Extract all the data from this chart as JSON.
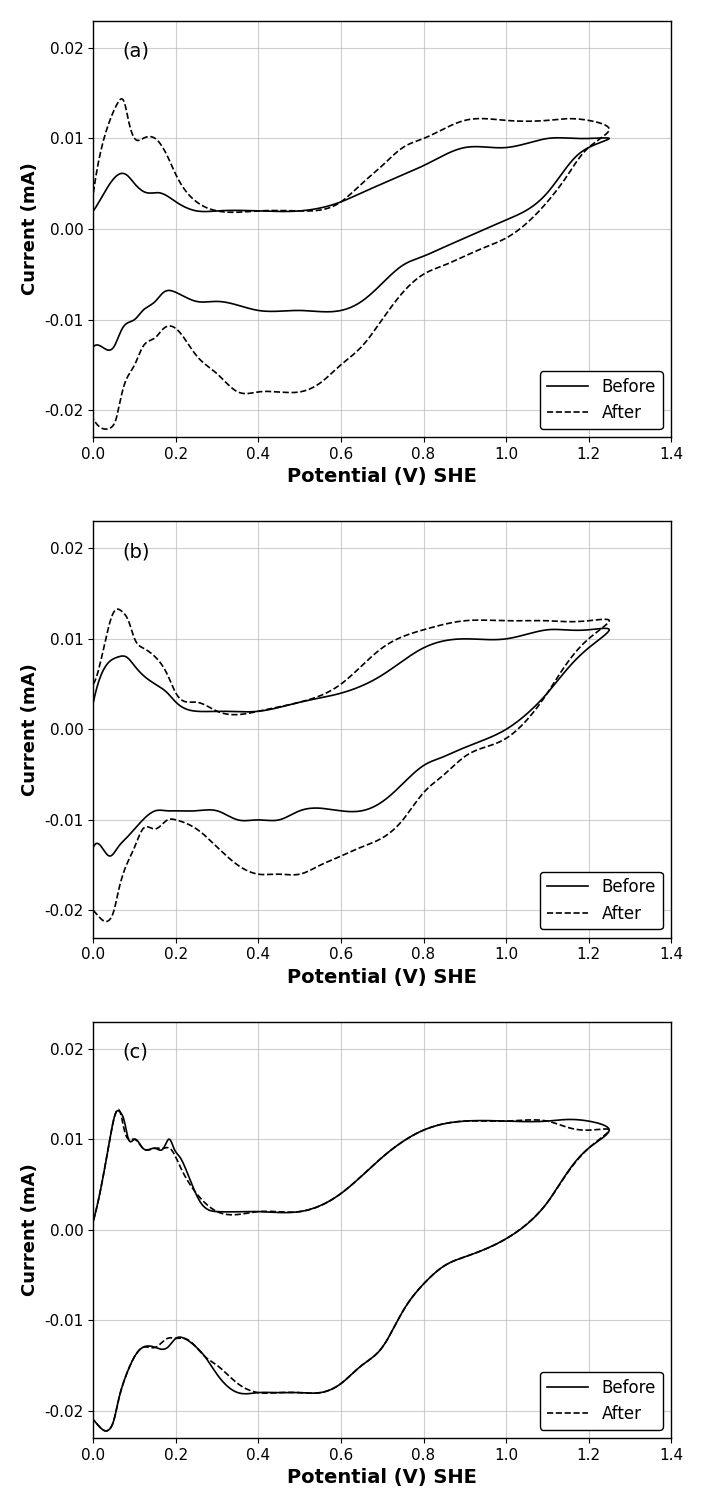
{
  "panels": [
    "(a)",
    "(b)",
    "(c)"
  ],
  "xlabel": "Potential (V) SHE",
  "ylabel": "Current (mA)",
  "xlim": [
    0.0,
    1.4
  ],
  "ylim": [
    -0.023,
    0.023
  ],
  "yticks": [
    -0.02,
    -0.01,
    0.0,
    0.01,
    0.02
  ],
  "xticks": [
    0.0,
    0.2,
    0.4,
    0.6,
    0.8,
    1.0,
    1.2,
    1.4
  ],
  "legend_labels": [
    "Before",
    "After"
  ],
  "background_color": "#ffffff",
  "grid_color": "#bbbbbb",
  "line_color": "#000000"
}
